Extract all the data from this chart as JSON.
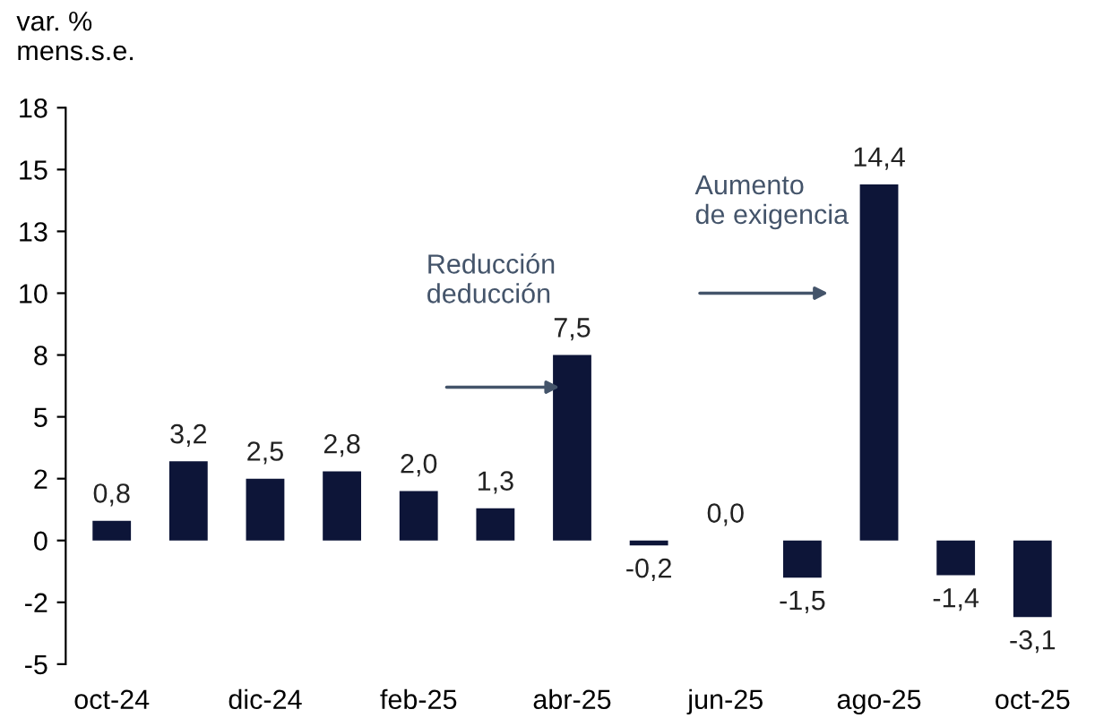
{
  "chart_data": {
    "type": "bar",
    "ylabel": "var. %\nmens.s.e.",
    "categories": [
      "oct-24",
      null,
      "dic-24",
      null,
      "feb-25",
      null,
      "abr-25",
      null,
      "jun-25",
      null,
      "ago-25",
      null,
      "oct-25"
    ],
    "values": [
      0.8,
      3.2,
      2.5,
      2.8,
      2.0,
      1.3,
      7.5,
      -0.2,
      0.0,
      -1.5,
      14.4,
      -1.4,
      -3.1
    ],
    "value_labels": [
      "0,8",
      "3,2",
      "2,5",
      "2,8",
      "2,0",
      "1,3",
      "7,5",
      "-0,2",
      "0,0",
      "-1,5",
      "14,4",
      "-1,4",
      "-3,1"
    ],
    "color": "#0d1538",
    "ylim": [
      -5,
      17.5
    ],
    "yticks": [
      {
        "value": -5,
        "label": "-5"
      },
      {
        "value": -2.5,
        "label": "-2"
      },
      {
        "value": 0,
        "label": "0"
      },
      {
        "value": 2.5,
        "label": "2"
      },
      {
        "value": 5,
        "label": "5"
      },
      {
        "value": 7.5,
        "label": "8"
      },
      {
        "value": 10,
        "label": "10"
      },
      {
        "value": 12.5,
        "label": "13"
      },
      {
        "value": 15,
        "label": "15"
      },
      {
        "value": 17.5,
        "label": "18"
      }
    ],
    "annotations": [
      "Reducción\ndeducción",
      "Aumento\nde exigencia"
    ],
    "grid": false,
    "legend": false
  }
}
